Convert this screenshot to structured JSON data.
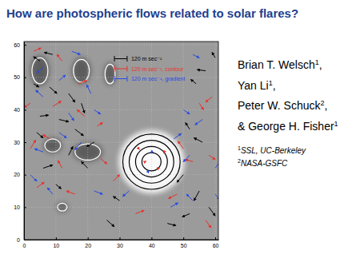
{
  "title": "How are photospheric flows related to solar flares?",
  "authors": [
    {
      "name": "Brian T. Welsch",
      "affiliation": "1",
      "suffix": ","
    },
    {
      "name": "Yan Li",
      "affiliation": "1",
      "suffix": ","
    },
    {
      "name": "Peter W. Schuck",
      "affiliation": "2",
      "suffix": ","
    },
    {
      "name": "& George H. Fisher",
      "affiliation": "1"
    }
  ],
  "affiliations": [
    {
      "mark": "1",
      "text": "SSL, UC-Berkeley"
    },
    {
      "mark": "2",
      "text": "NASA-GSFC"
    }
  ],
  "chart_data": {
    "type": "vector_field",
    "xlim": [
      0,
      61
    ],
    "ylim": [
      0,
      61
    ],
    "xticks": [
      0,
      10,
      20,
      30,
      40,
      50,
      60
    ],
    "yticks": [
      0,
      10,
      20,
      30,
      40,
      50,
      60
    ],
    "grid": true,
    "reference_speed": 120,
    "series": [
      {
        "name": "120 m sec⁻¹",
        "color": "#000000",
        "x": [
          5,
          9,
          3,
          8,
          14,
          18,
          5,
          11,
          4,
          16,
          22,
          14,
          20,
          6,
          10,
          52,
          56,
          50,
          55,
          58,
          52,
          45,
          30,
          26,
          54,
          57,
          60
        ],
        "y": [
          55,
          57,
          48,
          47,
          45,
          42,
          38,
          37,
          33,
          34,
          30,
          26,
          22,
          22,
          17,
          34,
          30,
          20,
          15,
          10,
          8,
          5,
          12,
          6,
          48,
          52,
          56
        ],
        "u": [
          -60,
          -80,
          50,
          70,
          60,
          30,
          80,
          90,
          60,
          80,
          -70,
          40,
          -60,
          90,
          50,
          -40,
          -80,
          -60,
          -50,
          60,
          -70,
          80,
          -60,
          70,
          -50,
          -80,
          -30
        ],
        "v": [
          40,
          20,
          -30,
          -60,
          -80,
          -90,
          10,
          -20,
          -50,
          -60,
          -40,
          80,
          60,
          30,
          -40,
          60,
          40,
          -70,
          -90,
          -80,
          -30,
          -20,
          40,
          -60,
          40,
          10,
          50
        ]
      },
      {
        "name": "120 m sec⁻¹, contour",
        "color": "#e8312a",
        "x": [
          3,
          12,
          17,
          2,
          9,
          19,
          2,
          8,
          24,
          12,
          4,
          16,
          23,
          38,
          42,
          36,
          44,
          50,
          58,
          53,
          48,
          57,
          35,
          28,
          55,
          59
        ],
        "y": [
          58,
          55,
          48,
          42,
          41,
          38,
          28,
          31,
          25,
          22,
          16,
          14,
          35,
          24,
          22,
          28,
          27,
          28,
          26,
          24,
          14,
          6,
          8,
          18,
          42,
          44
        ],
        "u": [
          70,
          -50,
          80,
          -60,
          80,
          -70,
          50,
          -60,
          60,
          -40,
          70,
          -80,
          50,
          10,
          -8,
          6,
          -5,
          -50,
          60,
          -70,
          -80,
          50,
          80,
          60,
          40,
          -60
        ],
        "v": [
          30,
          60,
          30,
          -40,
          50,
          60,
          80,
          40,
          -50,
          70,
          50,
          30,
          30,
          5,
          6,
          -8,
          -10,
          70,
          -40,
          20,
          -40,
          -70,
          30,
          60,
          -60,
          -50
        ]
      },
      {
        "name": "120 m sec⁻¹, gradient",
        "color": "#2a4be0",
        "x": [
          6,
          15,
          11,
          21,
          6,
          14,
          22,
          6,
          11,
          18,
          2,
          9,
          22,
          40,
          39,
          47,
          52,
          60,
          46,
          53,
          60,
          33,
          50,
          56,
          53
        ],
        "y": [
          53,
          58,
          49,
          45,
          44,
          39,
          40,
          27,
          33,
          30,
          20,
          14,
          15,
          27,
          21,
          31,
          26,
          22,
          10,
          12,
          14,
          15,
          40,
          37,
          57
        ],
        "u": [
          -60,
          80,
          60,
          -40,
          -70,
          50,
          60,
          -80,
          70,
          -60,
          60,
          -50,
          80,
          -8,
          6,
          70,
          -60,
          50,
          70,
          -60,
          40,
          -60,
          60,
          -70,
          60
        ],
        "v": [
          -50,
          -30,
          50,
          80,
          60,
          -70,
          -40,
          30,
          -50,
          -70,
          -60,
          60,
          -30,
          -6,
          8,
          50,
          -60,
          70,
          40,
          60,
          -50,
          -50,
          -40,
          -50,
          -30
        ]
      }
    ],
    "contours": [
      {
        "color": "#ffffff",
        "x": [
          5,
          18,
          27,
          20,
          9,
          12
        ],
        "y": [
          52,
          52,
          51,
          27,
          29,
          10
        ],
        "rx": [
          2.5,
          2.5,
          1.6,
          4,
          2.5,
          1.5
        ],
        "ry": [
          4,
          3.5,
          3,
          2.5,
          2,
          1.2
        ]
      },
      {
        "color": "#000000",
        "x": [
          40,
          40,
          40,
          40
        ],
        "y": [
          24,
          24,
          24,
          24
        ],
        "rx": [
          9,
          7,
          5,
          3
        ],
        "ry": [
          8.5,
          6.6,
          4.7,
          2.8
        ]
      }
    ]
  }
}
